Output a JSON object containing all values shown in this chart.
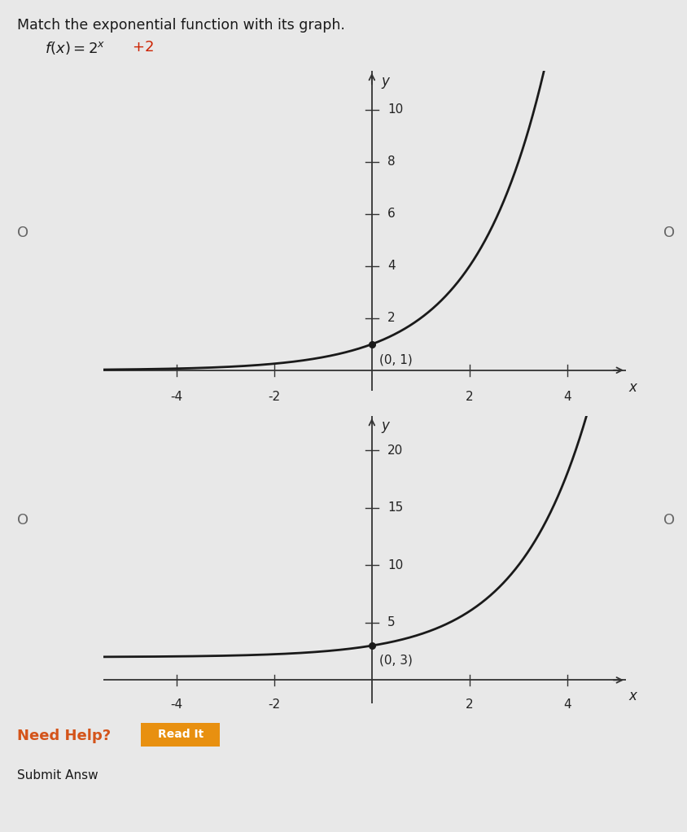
{
  "title": "Match the exponential function with its graph.",
  "background_color": "#e8e8e8",
  "graph1": {
    "xlim": [
      -5.5,
      5.2
    ],
    "ylim": [
      -0.8,
      11.5
    ],
    "xticks": [
      -4,
      -2,
      2,
      4
    ],
    "yticks": [
      2,
      4,
      6,
      8,
      10
    ],
    "x_func_min": -5.5,
    "x_func_max": 3.6,
    "func_type": "2^x",
    "point": [
      0,
      1
    ],
    "point_label": "(0, 1)",
    "xlabel": "x",
    "ylabel": "y",
    "curve_color": "#1a1a1a"
  },
  "graph2": {
    "xlim": [
      -5.5,
      5.2
    ],
    "ylim": [
      -2,
      23
    ],
    "xticks": [
      -4,
      -2,
      2,
      4
    ],
    "yticks": [
      5,
      10,
      15,
      20
    ],
    "x_func_min": -5.5,
    "x_func_max": 4.4,
    "func_type": "2^x+2",
    "point": [
      0,
      3
    ],
    "point_label": "(0, 3)",
    "xlabel": "x",
    "ylabel": "y",
    "curve_color": "#1a1a1a"
  },
  "need_help_color": "#d4541a",
  "read_it_bg": "#e89010",
  "read_it_text": "Read It",
  "submit_text": "Submit Answ",
  "radio_color": "#666666",
  "tick_color": "#333333",
  "axis_color": "#333333",
  "label_fontsize": 11,
  "tick_fontsize": 11
}
